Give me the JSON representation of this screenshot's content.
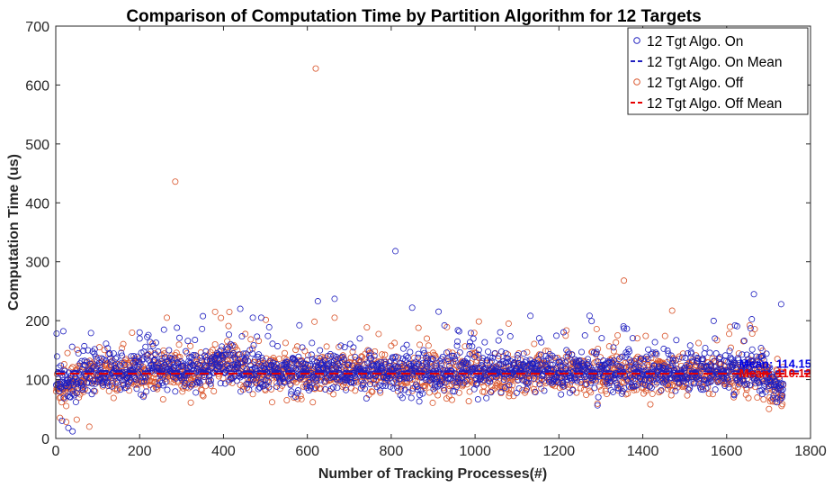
{
  "chart_data": {
    "type": "scatter",
    "title": "Comparison of Computation Time by Partition Algorithm for 12 Targets",
    "xlabel": "Number of Tracking Processes(#)",
    "ylabel": "Computation Time (us)",
    "xlim": [
      0,
      1800
    ],
    "ylim": [
      0,
      700
    ],
    "xticks": [
      0,
      200,
      400,
      600,
      800,
      1000,
      1200,
      1400,
      1600,
      1800
    ],
    "yticks": [
      0,
      100,
      200,
      300,
      400,
      500,
      600,
      700
    ],
    "legend_position": "top-right",
    "grid": false,
    "box": true,
    "n_points_per_series": 1735,
    "series": [
      {
        "name": "12 Tgt Algo. On",
        "marker": "circle-open",
        "color": "#1f1fbf",
        "typical_range": [
          75,
          150
        ],
        "notable_points": [
          [
            15,
            30
          ],
          [
            30,
            18
          ],
          [
            40,
            12
          ],
          [
            200,
            180
          ],
          [
            440,
            220
          ],
          [
            470,
            205
          ],
          [
            625,
            233
          ],
          [
            665,
            237
          ],
          [
            810,
            318
          ],
          [
            850,
            222
          ],
          [
            1620,
            192
          ],
          [
            1730,
            228
          ]
        ]
      },
      {
        "name": "12 Tgt Algo. On Mean",
        "line": "dashed",
        "color": "#1f1fbf",
        "value": 114.15
      },
      {
        "name": "12 Tgt Algo. Off",
        "marker": "circle-open",
        "color": "#d9542a",
        "typical_range": [
          75,
          150
        ],
        "notable_points": [
          [
            10,
            35
          ],
          [
            25,
            28
          ],
          [
            50,
            32
          ],
          [
            80,
            20
          ],
          [
            265,
            205
          ],
          [
            285,
            436
          ],
          [
            380,
            215
          ],
          [
            620,
            628
          ],
          [
            665,
            205
          ],
          [
            1080,
            195
          ],
          [
            1355,
            268
          ],
          [
            1470,
            217
          ],
          [
            1640,
            165
          ]
        ]
      },
      {
        "name": "12 Tgt Algo. Off Mean",
        "line": "dashed",
        "color": "#e60000",
        "value": 110.12
      }
    ],
    "annotations": [
      {
        "text": "Mean: 114.15",
        "color": "#0000e6",
        "x": 1630,
        "y": 114.15
      },
      {
        "text": "Mean: 110.12",
        "color": "#e60000",
        "x": 1630,
        "y": 98
      }
    ]
  }
}
